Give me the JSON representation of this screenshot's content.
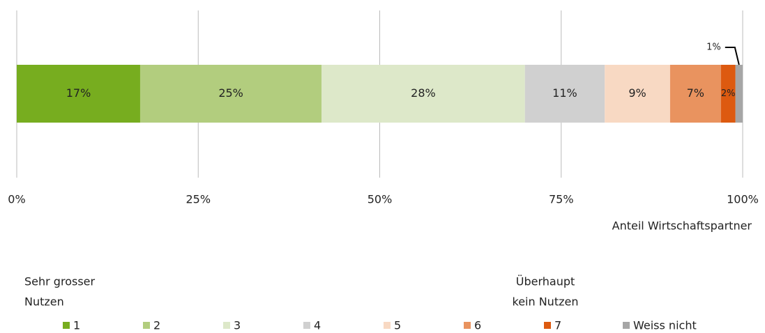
{
  "chart_data": {
    "type": "stacked-bar-horizontal",
    "x_label": "Anteil Wirtschaftspartner",
    "xlim": [
      0,
      100
    ],
    "xticks": [
      {
        "value": 0,
        "label": "0%"
      },
      {
        "value": 25,
        "label": "25%"
      },
      {
        "value": 50,
        "label": "50%"
      },
      {
        "value": 75,
        "label": "75%"
      },
      {
        "value": 100,
        "label": "100%"
      }
    ],
    "grid": true,
    "legend": "bottom",
    "annotations": [
      {
        "lines": [
          "Sehr grosser",
          "Nutzen"
        ]
      },
      {
        "lines": [
          "Überhaupt",
          "kein Nutzen"
        ]
      }
    ],
    "series": [
      {
        "name": "1",
        "color": "#77ad1f",
        "values": [
          17
        ],
        "value_labels": [
          "17%"
        ]
      },
      {
        "name": "2",
        "color": "#b2cd7e",
        "values": [
          25
        ],
        "value_labels": [
          "25%"
        ]
      },
      {
        "name": "3",
        "color": "#dde8c9",
        "values": [
          28
        ],
        "value_labels": [
          "28%"
        ]
      },
      {
        "name": "4",
        "color": "#d0d0d0",
        "values": [
          11
        ],
        "value_labels": [
          "11%"
        ]
      },
      {
        "name": "5",
        "color": "#f8d9c3",
        "values": [
          9
        ],
        "value_labels": [
          "9%"
        ]
      },
      {
        "name": "6",
        "color": "#e9935f",
        "values": [
          7
        ],
        "value_labels": [
          "7%"
        ]
      },
      {
        "name": "7",
        "color": "#dd5a10",
        "values": [
          2
        ],
        "value_labels": [
          "2%"
        ]
      },
      {
        "name": "Weiss nicht",
        "color": "#a6a6a6",
        "values": [
          1
        ],
        "value_labels": [
          "1%"
        ]
      }
    ]
  }
}
